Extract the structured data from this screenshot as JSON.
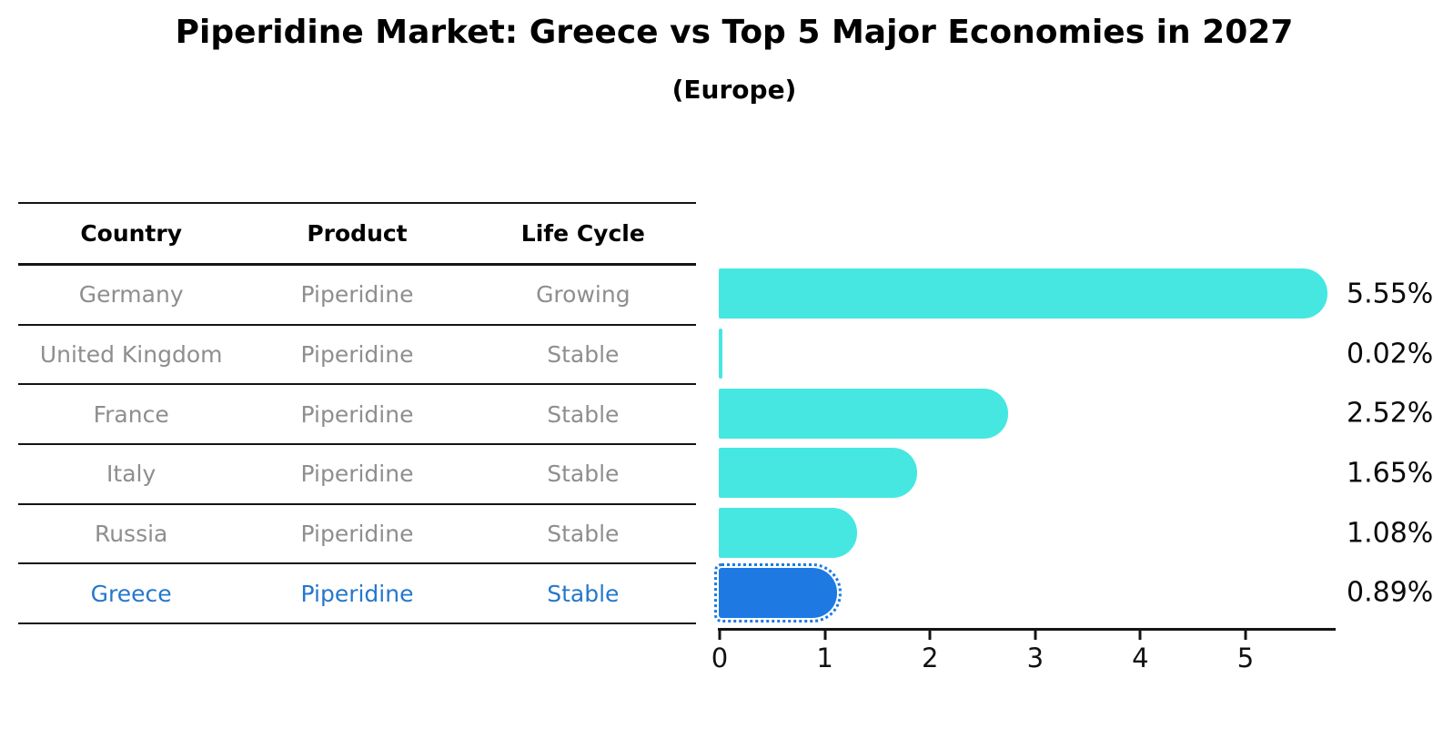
{
  "title": "Piperidine Market: Greece vs Top 5 Major Economies in 2027",
  "subtitle": "(Europe)",
  "table": {
    "headers": [
      "Country",
      "Product",
      "Life Cycle"
    ],
    "rows": [
      {
        "country": "Germany",
        "product": "Piperidine",
        "life_cycle": "Growing",
        "highlight": false
      },
      {
        "country": "United Kingdom",
        "product": "Piperidine",
        "life_cycle": "Stable",
        "highlight": false
      },
      {
        "country": "France",
        "product": "Piperidine",
        "life_cycle": "Stable",
        "highlight": false
      },
      {
        "country": "Italy",
        "product": "Piperidine",
        "life_cycle": "Stable",
        "highlight": false
      },
      {
        "country": "Russia",
        "product": "Piperidine",
        "life_cycle": "Stable",
        "highlight": false
      },
      {
        "country": "Greece",
        "product": "Piperidine",
        "life_cycle": "Stable",
        "highlight": true
      }
    ]
  },
  "chart_data": {
    "type": "bar",
    "orientation": "horizontal",
    "title": "Piperidine Market: Greece vs Top 5 Major Economies in 2027",
    "subtitle": "(Europe)",
    "categories": [
      "Germany",
      "United Kingdom",
      "France",
      "Italy",
      "Russia",
      "Greece"
    ],
    "values": [
      5.55,
      0.02,
      2.52,
      1.65,
      1.08,
      0.89
    ],
    "value_labels": [
      "5.55%",
      "0.02%",
      "2.52%",
      "1.65%",
      "1.08%",
      "0.89%"
    ],
    "xlabel": "",
    "ylabel": "",
    "xticks": [
      0,
      1,
      2,
      3,
      4,
      5
    ],
    "xlim": [
      0,
      5.87
    ],
    "grid": false,
    "legend": null,
    "highlight_index": 5
  },
  "colors": {
    "bar": "#46e7e1",
    "highlight_bar": "#1e7ae2",
    "highlight_text": "#2577cc",
    "muted_text": "#8e8e8e",
    "axis": "#141414"
  }
}
